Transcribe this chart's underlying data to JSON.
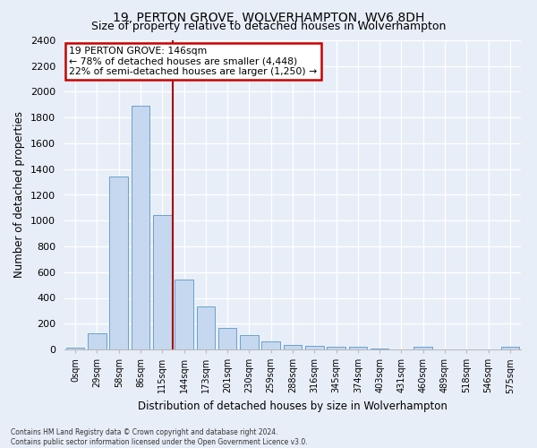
{
  "title": "19, PERTON GROVE, WOLVERHAMPTON, WV6 8DH",
  "subtitle": "Size of property relative to detached houses in Wolverhampton",
  "xlabel": "Distribution of detached houses by size in Wolverhampton",
  "ylabel": "Number of detached properties",
  "bar_labels": [
    "0sqm",
    "29sqm",
    "58sqm",
    "86sqm",
    "115sqm",
    "144sqm",
    "173sqm",
    "201sqm",
    "230sqm",
    "259sqm",
    "288sqm",
    "316sqm",
    "345sqm",
    "374sqm",
    "403sqm",
    "431sqm",
    "460sqm",
    "489sqm",
    "518sqm",
    "546sqm",
    "575sqm"
  ],
  "bar_values": [
    15,
    125,
    1340,
    1890,
    1040,
    540,
    335,
    165,
    110,
    60,
    38,
    27,
    22,
    18,
    10,
    0,
    18,
    0,
    0,
    0,
    18
  ],
  "bar_color": "#c5d8ef",
  "bar_edge_color": "#6aa0cc",
  "vline_color": "#aa0000",
  "vline_index": 4.5,
  "annotation_title": "19 PERTON GROVE: 146sqm",
  "annotation_line1": "← 78% of detached houses are smaller (4,448)",
  "annotation_line2": "22% of semi-detached houses are larger (1,250) →",
  "annotation_box_color": "#cc0000",
  "ylim": [
    0,
    2400
  ],
  "yticks": [
    0,
    200,
    400,
    600,
    800,
    1000,
    1200,
    1400,
    1600,
    1800,
    2000,
    2200,
    2400
  ],
  "footer1": "Contains HM Land Registry data © Crown copyright and database right 2024.",
  "footer2": "Contains public sector information licensed under the Open Government Licence v3.0.",
  "bg_color": "#e8eef8",
  "plot_bg_color": "#e8eef8",
  "grid_color": "#ffffff",
  "title_fontsize": 10,
  "subtitle_fontsize": 9
}
